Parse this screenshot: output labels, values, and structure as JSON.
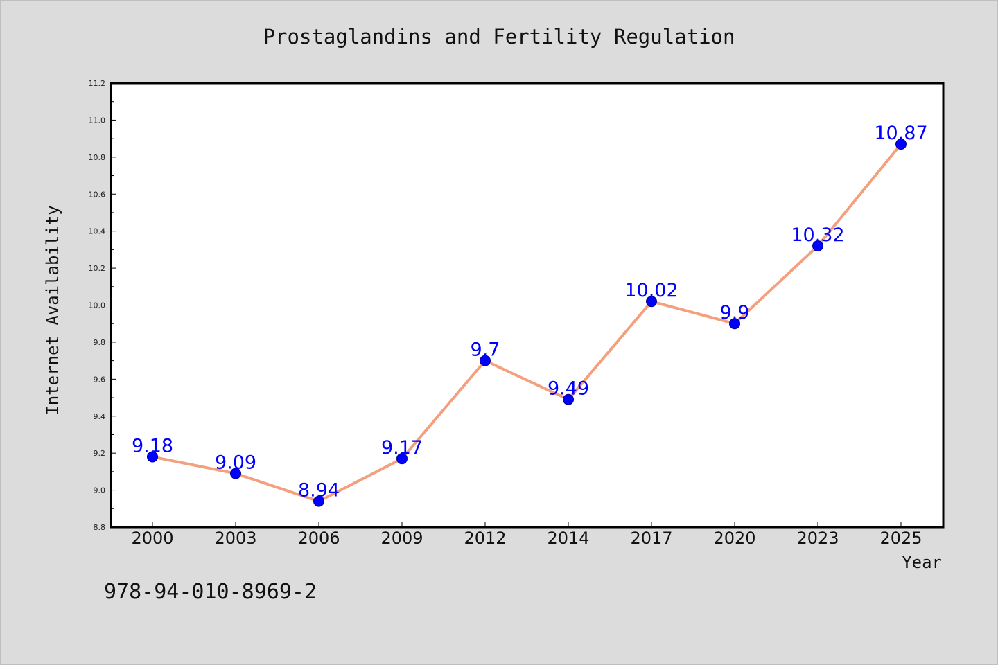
{
  "chart_data": {
    "type": "line",
    "title": "Prostaglandins and Fertility Regulation",
    "xlabel": "Year",
    "ylabel": "Internet Availability",
    "categories": [
      "2000",
      "2003",
      "2006",
      "2009",
      "2012",
      "2014",
      "2017",
      "2020",
      "2023",
      "2025"
    ],
    "series": [
      {
        "values": [
          9.18,
          9.09,
          8.94,
          9.17,
          9.7,
          9.49,
          10.02,
          9.9,
          10.32,
          10.87
        ],
        "data_labels": [
          "9.18",
          "9.09",
          "8.94",
          "9.17",
          "9.7",
          "9.49",
          "10.02",
          "9.9",
          "10.32",
          "10.87"
        ]
      }
    ],
    "ylim": [
      8.8,
      11.2
    ],
    "yticks": [
      "8.8",
      "9.0",
      "9.2",
      "9.4",
      "9.6",
      "9.8",
      "10.0",
      "10.2",
      "10.4",
      "10.6",
      "10.8",
      "11.0",
      "11.2"
    ],
    "grid": false,
    "legend": "none",
    "colors": {
      "line": "#f4a07e",
      "marker": "#0000ff",
      "marker_edge": "#00008b",
      "label": "#0000ff",
      "background": "#dcdcdc",
      "plot_background": "#ffffff"
    }
  },
  "footer": {
    "isbn": "978-94-010-8969-2"
  }
}
